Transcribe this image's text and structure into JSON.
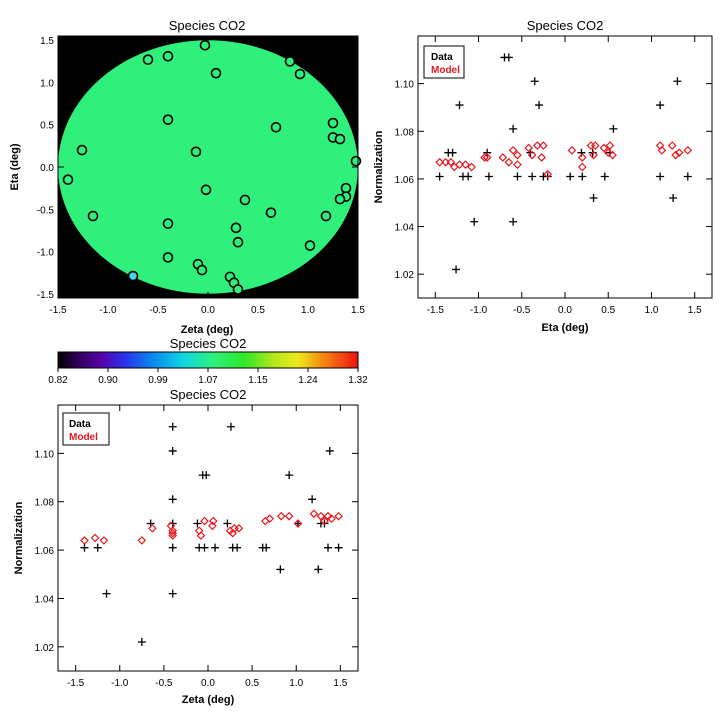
{
  "chart_data": [
    {
      "id": "map",
      "type": "scatter",
      "title": "Species CO2",
      "xlabel": "Zeta (deg)",
      "ylabel": "Eta (deg)",
      "xlim": [
        -1.5,
        1.5
      ],
      "ylim": [
        -1.55,
        1.55
      ],
      "xticks": [
        "-1.5",
        "-1.0",
        "-0.5",
        "0.0",
        "0.5",
        "1.0",
        "1.5"
      ],
      "yticks": [
        "-1.5",
        "-1.0",
        "-0.5",
        "0.0",
        "0.5",
        "1.0",
        "1.5"
      ],
      "background_color": "#000000",
      "field_color": "#2ef07a",
      "field_value": 1.07,
      "points": [
        {
          "x": -0.6,
          "y": 1.27
        },
        {
          "x": -0.4,
          "y": 1.31
        },
        {
          "x": -0.03,
          "y": 1.44
        },
        {
          "x": 0.08,
          "y": 1.11
        },
        {
          "x": 0.82,
          "y": 1.25
        },
        {
          "x": 0.92,
          "y": 1.1
        },
        {
          "x": -0.4,
          "y": 0.56
        },
        {
          "x": -1.26,
          "y": 0.2
        },
        {
          "x": -0.12,
          "y": 0.18
        },
        {
          "x": 0.68,
          "y": 0.47
        },
        {
          "x": 1.25,
          "y": 0.52
        },
        {
          "x": 1.25,
          "y": 0.35
        },
        {
          "x": 1.32,
          "y": 0.33
        },
        {
          "x": 1.48,
          "y": 0.07
        },
        {
          "x": -1.4,
          "y": -0.15
        },
        {
          "x": -0.02,
          "y": -0.27
        },
        {
          "x": 1.38,
          "y": -0.25
        },
        {
          "x": 1.38,
          "y": -0.35
        },
        {
          "x": 1.32,
          "y": -0.38
        },
        {
          "x": 0.37,
          "y": -0.39
        },
        {
          "x": -1.15,
          "y": -0.58
        },
        {
          "x": 0.63,
          "y": -0.54
        },
        {
          "x": 1.18,
          "y": -0.58
        },
        {
          "x": -0.4,
          "y": -0.67
        },
        {
          "x": 0.28,
          "y": -0.72
        },
        {
          "x": 0.3,
          "y": -0.89
        },
        {
          "x": 1.02,
          "y": -0.93
        },
        {
          "x": -0.4,
          "y": -1.07
        },
        {
          "x": -0.1,
          "y": -1.15
        },
        {
          "x": -0.06,
          "y": -1.22
        },
        {
          "x": 0.22,
          "y": -1.3
        },
        {
          "x": 0.26,
          "y": -1.37
        },
        {
          "x": 0.3,
          "y": -1.45
        },
        {
          "x": -0.75,
          "y": -1.29,
          "cyan": true
        }
      ]
    },
    {
      "id": "colorbar",
      "type": "heatmap",
      "title": "Species CO2",
      "range": [
        0.82,
        1.32
      ],
      "tick_labels": [
        "0.82",
        "0.90",
        "0.99",
        "1.07",
        "1.15",
        "1.24",
        "1.32"
      ]
    },
    {
      "id": "eta",
      "type": "scatter",
      "title": "Species CO2",
      "xlabel": "Eta (deg)",
      "ylabel": "Normalization",
      "xlim": [
        -1.7,
        1.7
      ],
      "ylim": [
        1.01,
        1.12
      ],
      "xticks": [
        "-1.5",
        "-1.0",
        "-0.5",
        "0.0",
        "0.5",
        "1.0",
        "1.5"
      ],
      "yticks": [
        "1.02",
        "1.04",
        "1.06",
        "1.08",
        "1.10"
      ],
      "legend": {
        "position": "top-left",
        "entries": [
          "Data",
          "Model"
        ]
      },
      "series": [
        {
          "name": "Data",
          "marker": "plus",
          "color": "#000000",
          "points": [
            [
              -1.45,
              1.061
            ],
            [
              -1.35,
              1.071
            ],
            [
              -1.3,
              1.071
            ],
            [
              -1.26,
              1.022
            ],
            [
              -1.22,
              1.091
            ],
            [
              -1.18,
              1.061
            ],
            [
              -1.12,
              1.061
            ],
            [
              -1.05,
              1.042
            ],
            [
              -0.9,
              1.071
            ],
            [
              -0.88,
              1.061
            ],
            [
              -0.7,
              1.111
            ],
            [
              -0.65,
              1.111
            ],
            [
              -0.6,
              1.081
            ],
            [
              -0.6,
              1.042
            ],
            [
              -0.55,
              1.061
            ],
            [
              -0.4,
              1.071
            ],
            [
              -0.38,
              1.061
            ],
            [
              -0.35,
              1.101
            ],
            [
              -0.3,
              1.091
            ],
            [
              -0.25,
              1.061
            ],
            [
              -0.2,
              1.061
            ],
            [
              0.06,
              1.061
            ],
            [
              0.19,
              1.071
            ],
            [
              0.2,
              1.061
            ],
            [
              0.32,
              1.071
            ],
            [
              0.33,
              1.052
            ],
            [
              0.46,
              1.061
            ],
            [
              0.52,
              1.071
            ],
            [
              0.56,
              1.081
            ],
            [
              1.1,
              1.091
            ],
            [
              1.1,
              1.061
            ],
            [
              1.25,
              1.052
            ],
            [
              1.3,
              1.101
            ],
            [
              1.42,
              1.061
            ]
          ]
        },
        {
          "name": "Model",
          "marker": "diamond",
          "color": "#e8191e",
          "points": [
            [
              -1.45,
              1.067
            ],
            [
              -1.38,
              1.067
            ],
            [
              -1.32,
              1.067
            ],
            [
              -1.28,
              1.065
            ],
            [
              -1.22,
              1.066
            ],
            [
              -1.15,
              1.066
            ],
            [
              -1.08,
              1.065
            ],
            [
              -0.93,
              1.069
            ],
            [
              -0.9,
              1.069
            ],
            [
              -0.72,
              1.069
            ],
            [
              -0.65,
              1.067
            ],
            [
              -0.6,
              1.072
            ],
            [
              -0.55,
              1.07
            ],
            [
              -0.55,
              1.066
            ],
            [
              -0.42,
              1.073
            ],
            [
              -0.38,
              1.07
            ],
            [
              -0.32,
              1.074
            ],
            [
              -0.27,
              1.069
            ],
            [
              -0.25,
              1.074
            ],
            [
              -0.2,
              1.062
            ],
            [
              0.08,
              1.072
            ],
            [
              0.2,
              1.069
            ],
            [
              0.2,
              1.065
            ],
            [
              0.3,
              1.074
            ],
            [
              0.35,
              1.074
            ],
            [
              0.33,
              1.07
            ],
            [
              0.45,
              1.073
            ],
            [
              0.5,
              1.071
            ],
            [
              0.52,
              1.074
            ],
            [
              0.55,
              1.07
            ],
            [
              1.1,
              1.074
            ],
            [
              1.12,
              1.072
            ],
            [
              1.24,
              1.074
            ],
            [
              1.28,
              1.07
            ],
            [
              1.32,
              1.071
            ],
            [
              1.42,
              1.072
            ]
          ]
        }
      ]
    },
    {
      "id": "zeta",
      "type": "scatter",
      "title": "Species CO2",
      "xlabel": "Zeta (deg)",
      "ylabel": "Normalization",
      "xlim": [
        -1.7,
        1.7
      ],
      "ylim": [
        1.01,
        1.12
      ],
      "xticks": [
        "-1.5",
        "-1.0",
        "-0.5",
        "0.0",
        "0.5",
        "1.0",
        "1.5"
      ],
      "yticks": [
        "1.02",
        "1.04",
        "1.06",
        "1.08",
        "1.10"
      ],
      "legend": {
        "position": "top-left",
        "entries": [
          "Data",
          "Model"
        ]
      },
      "series": [
        {
          "name": "Data",
          "marker": "plus",
          "color": "#000000",
          "points": [
            [
              -1.4,
              1.061
            ],
            [
              -1.25,
              1.061
            ],
            [
              -1.15,
              1.042
            ],
            [
              -0.75,
              1.022
            ],
            [
              -0.65,
              1.071
            ],
            [
              -0.4,
              1.111
            ],
            [
              -0.4,
              1.101
            ],
            [
              -0.4,
              1.081
            ],
            [
              -0.4,
              1.071
            ],
            [
              -0.4,
              1.061
            ],
            [
              -0.4,
              1.042
            ],
            [
              -0.06,
              1.091
            ],
            [
              -0.02,
              1.091
            ],
            [
              -0.12,
              1.071
            ],
            [
              -0.1,
              1.061
            ],
            [
              -0.04,
              1.061
            ],
            [
              0.08,
              1.061
            ],
            [
              0.22,
              1.071
            ],
            [
              0.26,
              1.111
            ],
            [
              0.28,
              1.061
            ],
            [
              0.33,
              1.061
            ],
            [
              0.62,
              1.061
            ],
            [
              0.66,
              1.061
            ],
            [
              0.82,
              1.052
            ],
            [
              0.92,
              1.091
            ],
            [
              1.02,
              1.071
            ],
            [
              1.18,
              1.081
            ],
            [
              1.25,
              1.052
            ],
            [
              1.28,
              1.071
            ],
            [
              1.32,
              1.071
            ],
            [
              1.36,
              1.061
            ],
            [
              1.38,
              1.101
            ],
            [
              1.48,
              1.061
            ]
          ]
        },
        {
          "name": "Model",
          "marker": "diamond",
          "color": "#e8191e",
          "points": [
            [
              -1.4,
              1.064
            ],
            [
              -1.28,
              1.065
            ],
            [
              -1.18,
              1.064
            ],
            [
              -0.75,
              1.064
            ],
            [
              -0.63,
              1.069
            ],
            [
              -0.42,
              1.07
            ],
            [
              -0.4,
              1.068
            ],
            [
              -0.4,
              1.067
            ],
            [
              -0.4,
              1.066
            ],
            [
              -0.1,
              1.068
            ],
            [
              -0.08,
              1.066
            ],
            [
              -0.04,
              1.072
            ],
            [
              0.05,
              1.07
            ],
            [
              0.06,
              1.072
            ],
            [
              0.25,
              1.068
            ],
            [
              0.28,
              1.067
            ],
            [
              0.3,
              1.069
            ],
            [
              0.35,
              1.069
            ],
            [
              0.65,
              1.072
            ],
            [
              0.7,
              1.073
            ],
            [
              0.83,
              1.074
            ],
            [
              0.92,
              1.074
            ],
            [
              1.02,
              1.071
            ],
            [
              1.2,
              1.075
            ],
            [
              1.28,
              1.074
            ],
            [
              1.32,
              1.072
            ],
            [
              1.36,
              1.074
            ],
            [
              1.4,
              1.073
            ],
            [
              1.48,
              1.074
            ]
          ]
        }
      ]
    }
  ]
}
